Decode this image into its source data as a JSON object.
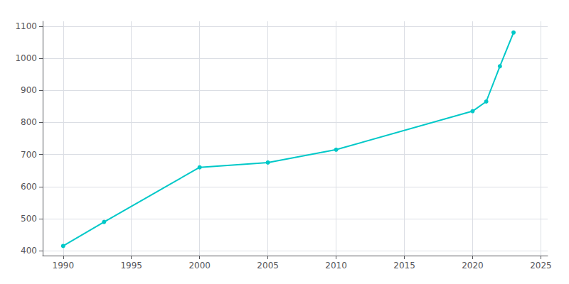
{
  "chart_data": {
    "type": "line",
    "x": [
      1990,
      1993,
      2000,
      2005,
      2010,
      2020,
      2021,
      2022,
      2023
    ],
    "values": [
      415,
      490,
      660,
      675,
      715,
      835,
      865,
      975,
      1080
    ],
    "color": "#00c8c8",
    "marker": "circle",
    "xlim": [
      1988.5,
      2025.5
    ],
    "ylim": [
      385,
      1115
    ],
    "xticks": [
      1990,
      1995,
      2000,
      2005,
      2010,
      2015,
      2020,
      2025
    ],
    "yticks": [
      400,
      500,
      600,
      700,
      800,
      900,
      1000,
      1100
    ],
    "grid": true
  }
}
